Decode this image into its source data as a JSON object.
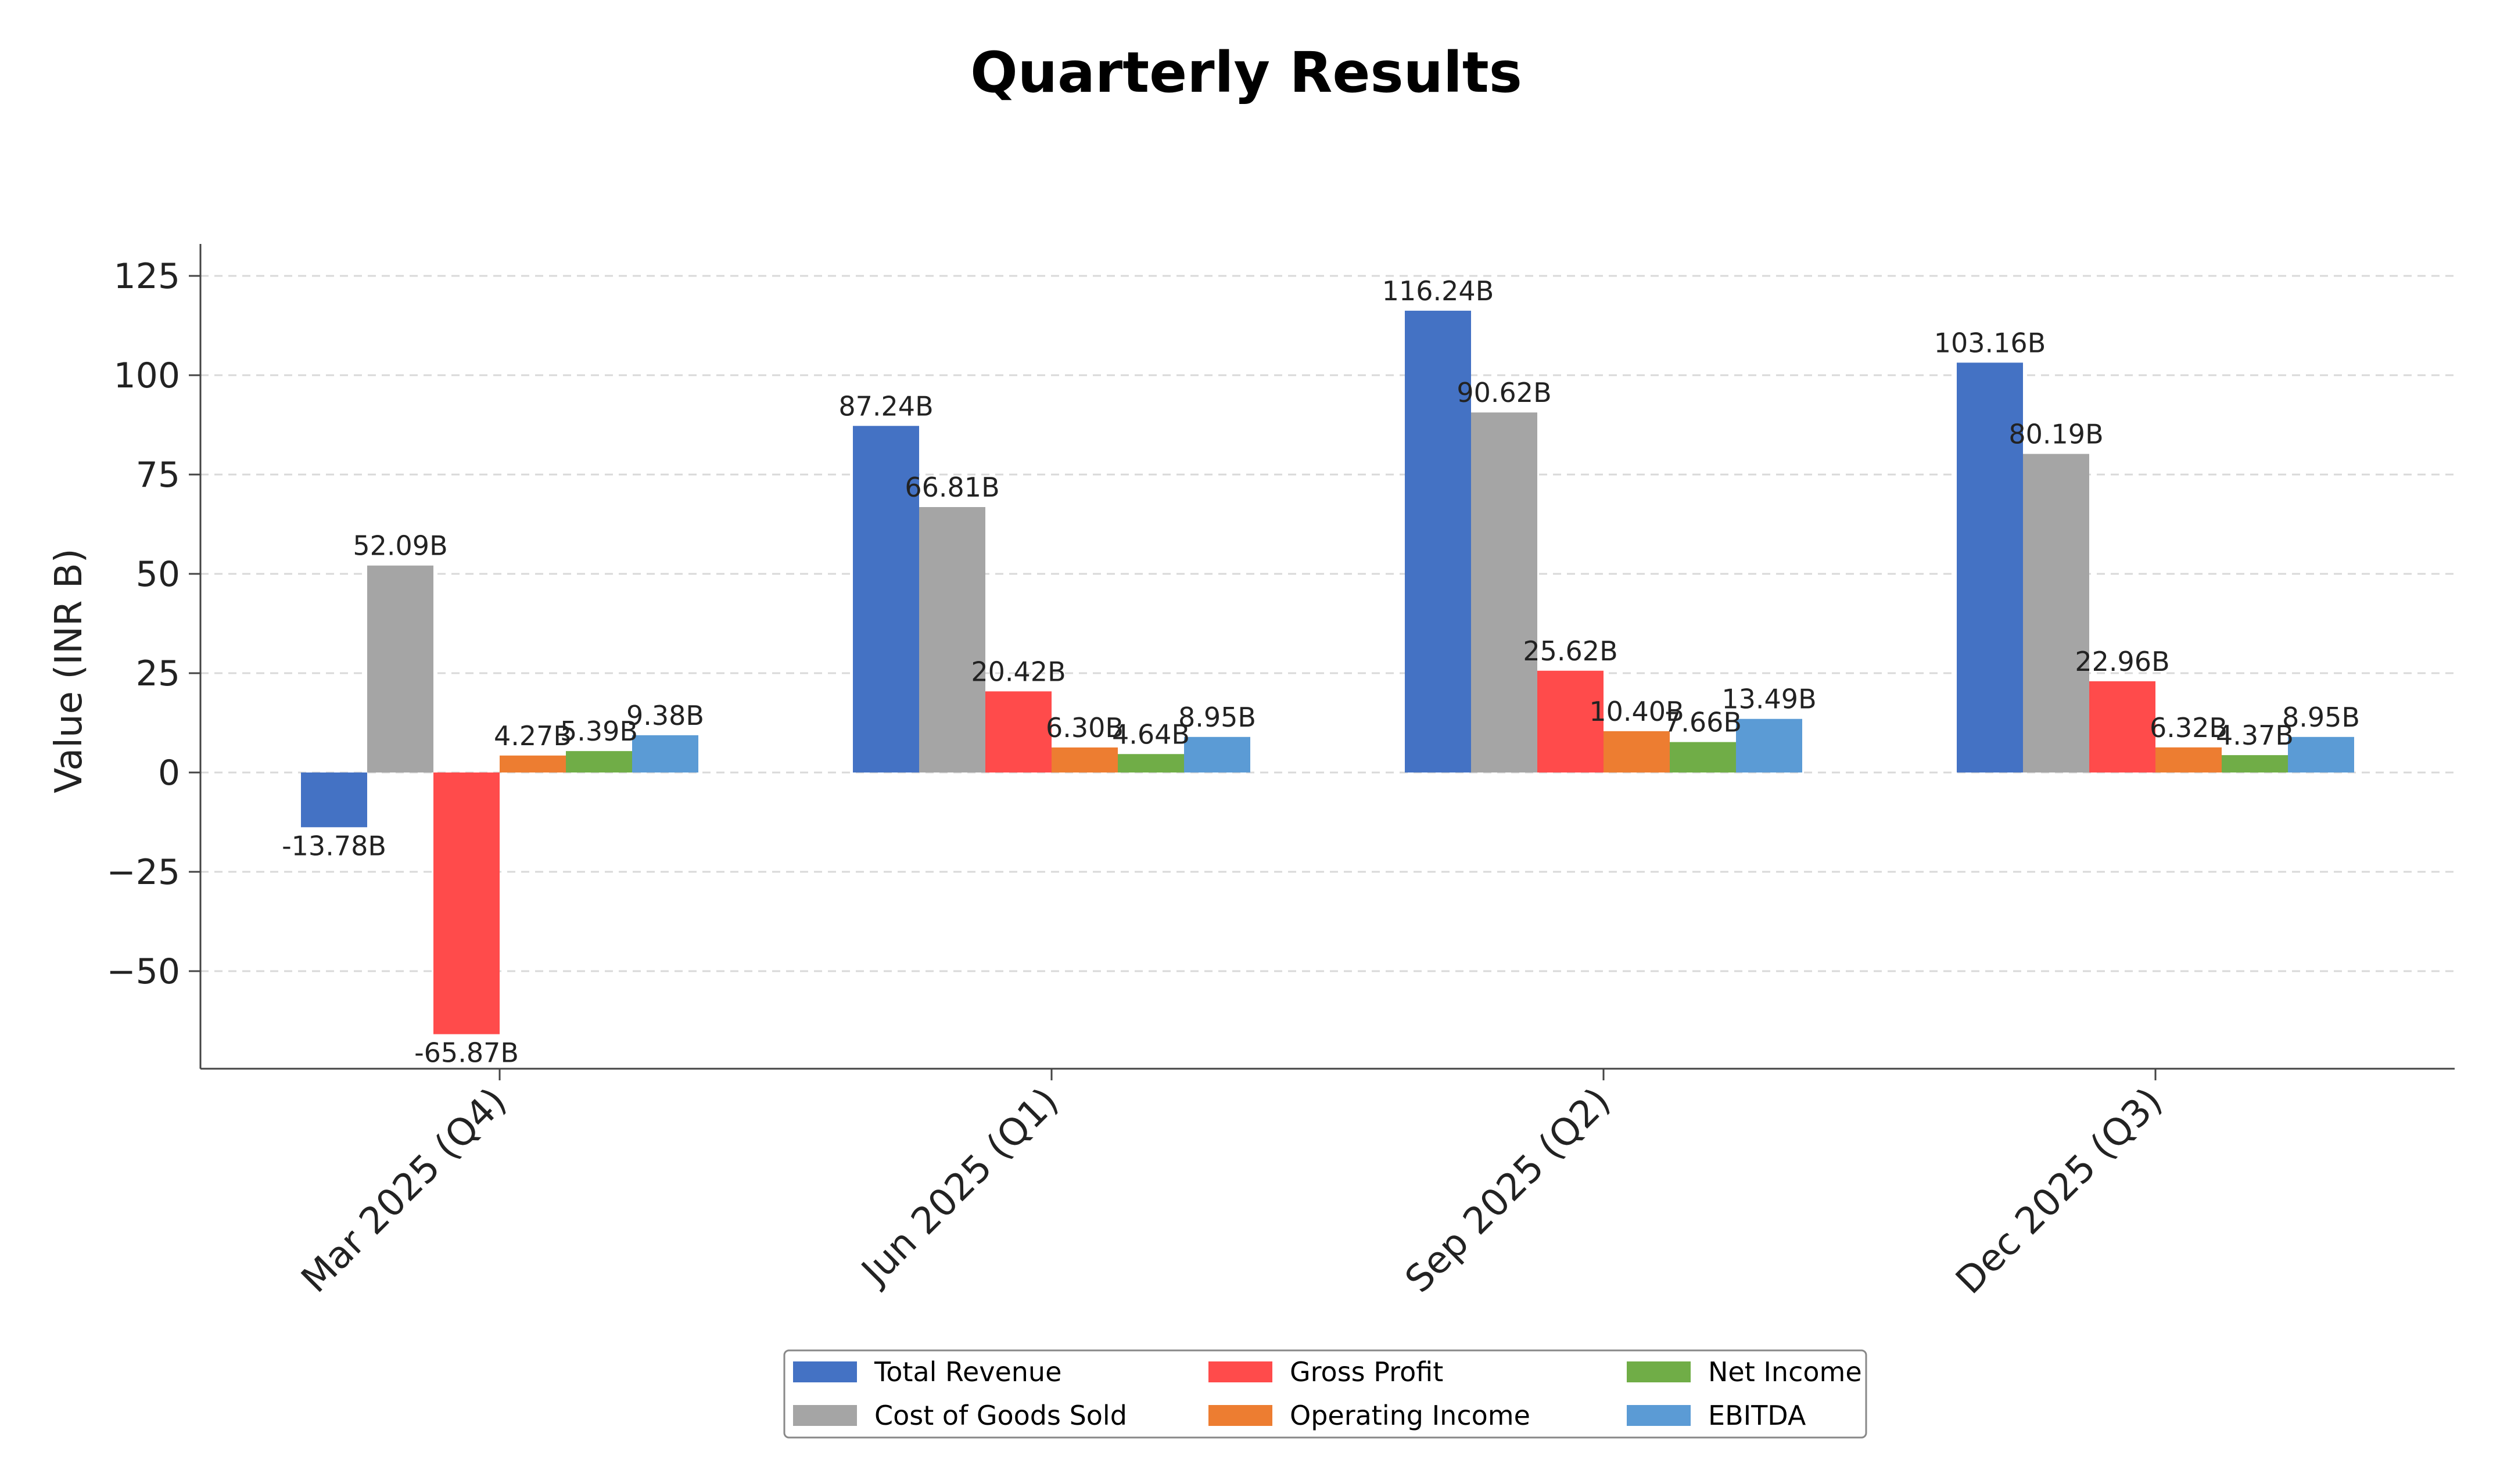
{
  "chart_data": {
    "type": "bar",
    "title": "Quarterly Results",
    "ylabel": "Value (INR B)",
    "xlabel": "",
    "ylim": [
      -75,
      130
    ],
    "yticks": [
      -50,
      -25,
      0,
      25,
      50,
      75,
      100,
      125
    ],
    "ytick_labels": [
      "−50",
      "−25",
      "0",
      "25",
      "50",
      "75",
      "100",
      "125"
    ],
    "grid": "y-dashed",
    "legend_placement": "bottom-center",
    "categories": [
      "Mar 2025 (Q4)",
      "Jun 2025 (Q1)",
      "Sep 2025 (Q2)",
      "Dec 2025 (Q3)"
    ],
    "series": [
      {
        "name": "Total Revenue",
        "color": "#4472c4",
        "values": [
          -13.78,
          87.24,
          116.24,
          103.16
        ],
        "labels": [
          "-13.78B",
          "87.24B",
          "116.24B",
          "103.16B"
        ]
      },
      {
        "name": "Cost of Goods Sold",
        "color": "#a5a5a5",
        "values": [
          52.09,
          66.81,
          90.62,
          80.19
        ],
        "labels": [
          "52.09B",
          "66.81B",
          "90.62B",
          "80.19B"
        ]
      },
      {
        "name": "Gross Profit",
        "color": "#ff4b4b",
        "values": [
          -65.87,
          20.42,
          25.62,
          22.96
        ],
        "labels": [
          "-65.87B",
          "20.42B",
          "25.62B",
          "22.96B"
        ]
      },
      {
        "name": "Operating Income",
        "color": "#ed7d31",
        "values": [
          4.27,
          6.3,
          10.4,
          6.32
        ],
        "labels": [
          "4.27B",
          "6.30B",
          "10.40B",
          "6.32B"
        ]
      },
      {
        "name": "Net Income",
        "color": "#70ad47",
        "values": [
          5.39,
          4.64,
          7.66,
          4.37
        ],
        "labels": [
          "5.39B",
          "4.64B",
          "7.66B",
          "4.37B"
        ]
      },
      {
        "name": "EBITDA",
        "color": "#5b9bd5",
        "values": [
          9.38,
          8.95,
          13.49,
          8.95
        ],
        "labels": [
          "9.38B",
          "8.95B",
          "13.49B",
          "8.95B"
        ]
      }
    ]
  }
}
